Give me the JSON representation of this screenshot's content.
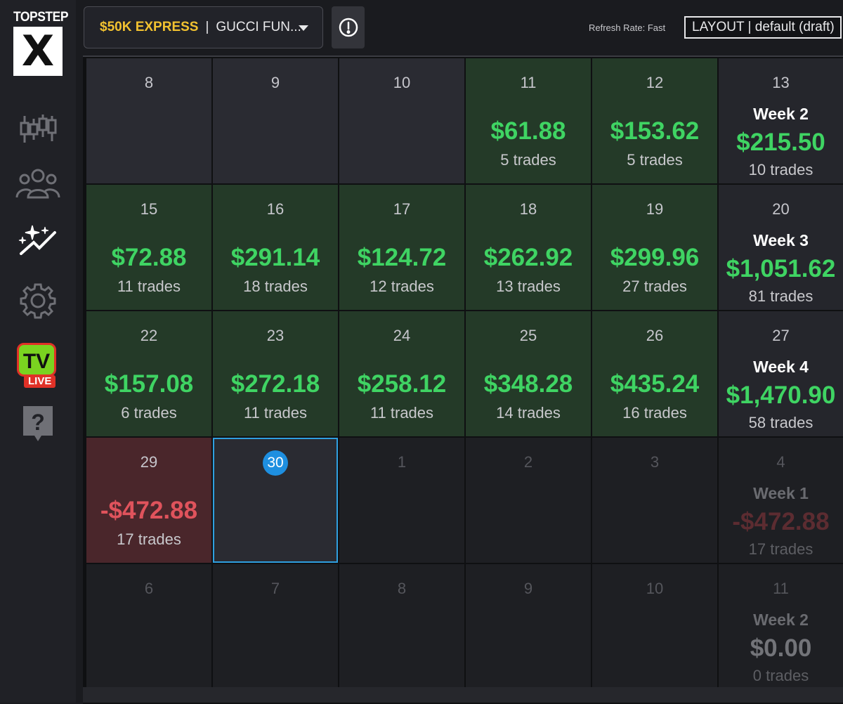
{
  "sidebar": {
    "logo_top": "TOPSTEP",
    "logo_mark": "X",
    "items": [
      {
        "icon": "candlestick-chart-icon"
      },
      {
        "icon": "users-group-icon"
      },
      {
        "icon": "sparkle-trend-icon"
      },
      {
        "icon": "gear-icon"
      },
      {
        "icon": "tv-live-icon",
        "tv_text": "TV",
        "live_text": "LIVE"
      },
      {
        "icon": "help-icon"
      }
    ]
  },
  "header": {
    "account_name": "$50K EXPRESS",
    "separator": "|",
    "account_owner": "GUCCI FUN...",
    "refresh_rate": "Refresh Rate: Fast",
    "layout_label": "LAYOUT | default (draft)"
  },
  "colors": {
    "accent_yellow": "#f2c230",
    "profit_green": "#3fd463",
    "loss_red": "#e0535c",
    "today_blue": "#1e8fe0"
  },
  "calendar": {
    "rows": [
      [
        {
          "day": "8",
          "state": "empty"
        },
        {
          "day": "9",
          "state": "empty"
        },
        {
          "day": "10",
          "state": "empty"
        },
        {
          "day": "11",
          "state": "green",
          "pnl": "$61.88",
          "trades": "5 trades"
        },
        {
          "day": "12",
          "state": "green",
          "pnl": "$153.62",
          "trades": "5 trades"
        },
        {
          "day": "13",
          "state": "week",
          "week": "Week 2",
          "pnl": "$215.50",
          "trades": "10 trades",
          "sign": "pos"
        }
      ],
      [
        {
          "day": "15",
          "state": "green",
          "pnl": "$72.88",
          "trades": "11 trades"
        },
        {
          "day": "16",
          "state": "green",
          "pnl": "$291.14",
          "trades": "18 trades"
        },
        {
          "day": "17",
          "state": "green",
          "pnl": "$124.72",
          "trades": "12 trades"
        },
        {
          "day": "18",
          "state": "green",
          "pnl": "$262.92",
          "trades": "13 trades"
        },
        {
          "day": "19",
          "state": "green",
          "pnl": "$299.96",
          "trades": "27 trades"
        },
        {
          "day": "20",
          "state": "week",
          "week": "Week 3",
          "pnl": "$1,051.62",
          "trades": "81 trades",
          "sign": "pos"
        }
      ],
      [
        {
          "day": "22",
          "state": "green",
          "pnl": "$157.08",
          "trades": "6 trades"
        },
        {
          "day": "23",
          "state": "green",
          "pnl": "$272.18",
          "trades": "11 trades"
        },
        {
          "day": "24",
          "state": "green",
          "pnl": "$258.12",
          "trades": "11 trades"
        },
        {
          "day": "25",
          "state": "green",
          "pnl": "$348.28",
          "trades": "14 trades"
        },
        {
          "day": "26",
          "state": "green",
          "pnl": "$435.24",
          "trades": "16 trades"
        },
        {
          "day": "27",
          "state": "week",
          "week": "Week 4",
          "pnl": "$1,470.90",
          "trades": "58 trades",
          "sign": "pos"
        }
      ],
      [
        {
          "day": "29",
          "state": "red",
          "pnl": "-$472.88",
          "trades": "17 trades"
        },
        {
          "day": "30",
          "state": "today"
        },
        {
          "day": "1",
          "state": "future"
        },
        {
          "day": "2",
          "state": "future"
        },
        {
          "day": "3",
          "state": "future"
        },
        {
          "day": "4",
          "state": "future-week",
          "week": "Week 1",
          "pnl": "-$472.88",
          "trades": "17 trades",
          "sign": "neg"
        }
      ],
      [
        {
          "day": "6",
          "state": "future"
        },
        {
          "day": "7",
          "state": "future"
        },
        {
          "day": "8",
          "state": "future"
        },
        {
          "day": "9",
          "state": "future"
        },
        {
          "day": "10",
          "state": "future"
        },
        {
          "day": "11",
          "state": "future-week",
          "week": "Week 2",
          "pnl": "$0.00",
          "trades": "0 trades",
          "sign": "zero"
        }
      ]
    ]
  }
}
